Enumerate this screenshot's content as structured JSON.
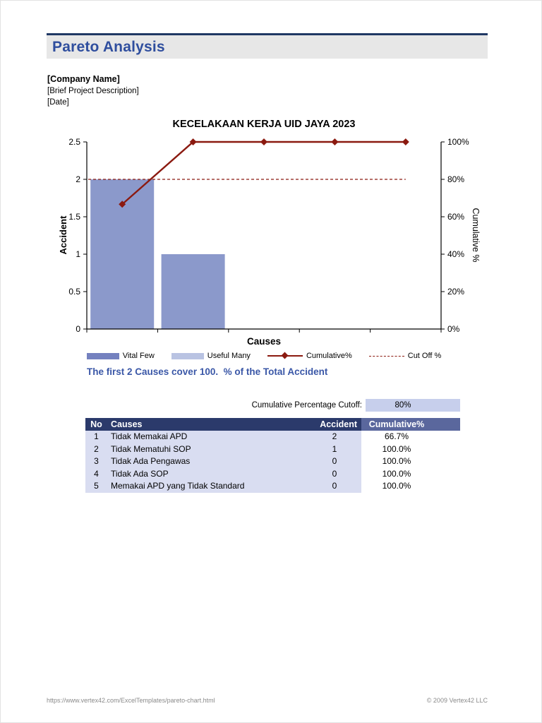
{
  "page": {
    "title": "Pareto Analysis",
    "company": "[Company Name]",
    "description": "[Brief Project Description]",
    "date": "[Date]",
    "note": "The first 2 Causes cover 100.  % of the Total Accident",
    "footer_url": "https://www.vertex42.com/ExcelTemplates/pareto-chart.html",
    "footer_copyright": "© 2009 Vertex42 LLC"
  },
  "chart_data": {
    "type": "bar",
    "subtype": "pareto",
    "title": "KECELAKAAN KERJA UID JAYA 2023",
    "categories": [
      "Tidak Memakai APD",
      "Tidak Mematuhi SOP",
      "Tidak Ada Pengawas",
      "Tidak Ada SOP",
      "Memakai APD yang Tidak Standard"
    ],
    "series": [
      {
        "name": "Accident",
        "type": "bar",
        "values": [
          2,
          1,
          0,
          0,
          0
        ]
      },
      {
        "name": "Cumulative%",
        "type": "line",
        "values_pct": [
          66.7,
          100,
          100,
          100,
          100
        ]
      },
      {
        "name": "Cut Off %",
        "type": "dashed-line",
        "value_pct": 80
      }
    ],
    "xlabel": "Causes",
    "ylabel_left": "Accident",
    "ylabel_right": "Cumulative %",
    "ylim_left": [
      0,
      2.5
    ],
    "ylim_right_pct": [
      0,
      100
    ],
    "yticks_left": [
      0,
      0.5,
      1,
      1.5,
      2,
      2.5
    ],
    "yticks_right_labels": [
      "0%",
      "20%",
      "40%",
      "60%",
      "80%",
      "100%"
    ],
    "grid": false,
    "legend_position": "bottom",
    "legend": [
      {
        "label": "Vital Few"
      },
      {
        "label": "Useful Many"
      },
      {
        "label": "Cumulative%"
      },
      {
        "label": "Cut Off %"
      }
    ],
    "colors": {
      "bar": "#8B99CB",
      "vital_few": "#7481BF",
      "useful_many": "#B9C3E2",
      "line": "#8B1A10",
      "cutoff_line": "#8B1A10",
      "header_bg": "#2B3A6B",
      "header_cumulative_bg": "#5A679D",
      "row_bg": "#D9DDF1",
      "cutoff_cell_bg": "#C7CFEC",
      "title_color": "#2F4E9E",
      "note_color": "#3A57A7",
      "banner_bg": "#E7E7E7",
      "banner_rule": "#203864"
    }
  },
  "cutoff": {
    "label": "Cumulative Percentage Cutoff:",
    "value": "80%"
  },
  "table": {
    "headers": {
      "no": "No",
      "causes": "Causes",
      "accident": "Accident",
      "cumulative": "Cumulative%"
    },
    "rows": [
      {
        "no": "1",
        "cause": "Tidak Memakai APD",
        "accident": "2",
        "cumulative": "66.7%"
      },
      {
        "no": "2",
        "cause": "Tidak Mematuhi SOP",
        "accident": "1",
        "cumulative": "100.0%"
      },
      {
        "no": "3",
        "cause": "Tidak Ada Pengawas",
        "accident": "0",
        "cumulative": "100.0%"
      },
      {
        "no": "4",
        "cause": "Tidak Ada SOP",
        "accident": "0",
        "cumulative": "100.0%"
      },
      {
        "no": "5",
        "cause": "Memakai APD yang Tidak Standard",
        "accident": "0",
        "cumulative": "100.0%"
      }
    ]
  }
}
